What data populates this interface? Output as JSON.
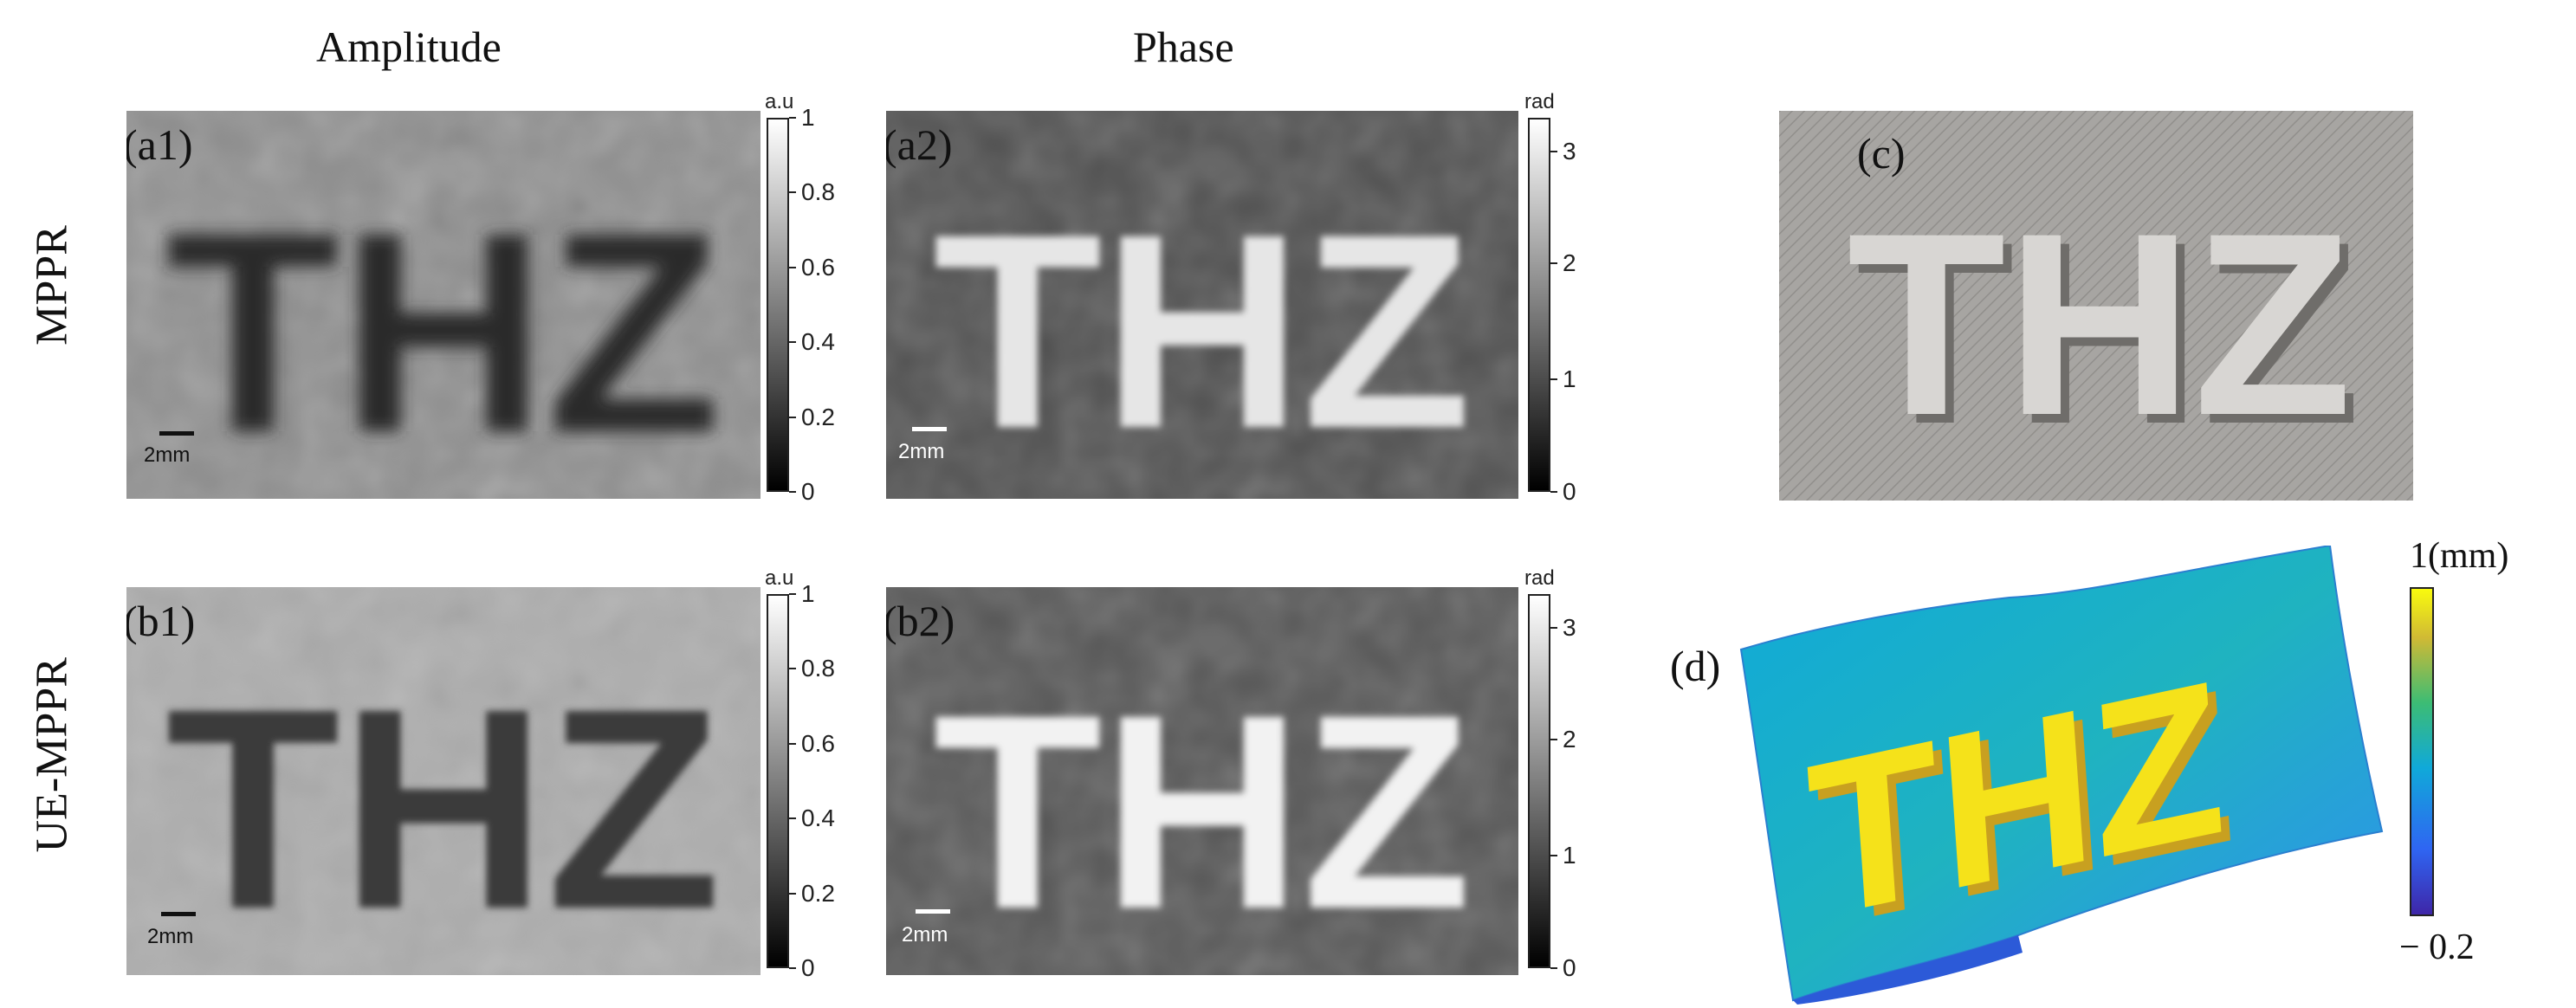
{
  "columns": {
    "amplitude": "Amplitude",
    "phase": "Phase"
  },
  "rows": {
    "mppr": "MPPR",
    "ue_mppr": "UE-MPPR"
  },
  "panels": {
    "a1": {
      "label": "(a1)",
      "scale": "2mm"
    },
    "a2": {
      "label": "(a2)",
      "scale": "2mm"
    },
    "b1": {
      "label": "(b1)",
      "scale": "2mm"
    },
    "b2": {
      "label": "(b2)",
      "scale": "2mm"
    },
    "c": {
      "label": "(c)"
    },
    "d": {
      "label": "(d)"
    }
  },
  "image_text": "THZ",
  "colorbars": {
    "amp_a": {
      "unit": "a.u",
      "ticks": [
        "1",
        "0.8",
        "0.6",
        "0.4",
        "0.2",
        "0"
      ]
    },
    "phase_a": {
      "unit": "rad",
      "ticks": [
        "3",
        "2",
        "1",
        "0"
      ]
    },
    "amp_b": {
      "unit": "a.u",
      "ticks": [
        "1",
        "0.8",
        "0.6",
        "0.4",
        "0.2",
        "0"
      ]
    },
    "phase_b": {
      "unit": "rad",
      "ticks": [
        "3",
        "2",
        "1",
        "0"
      ]
    },
    "height": {
      "max": "1(mm)",
      "min": "− 0.2"
    }
  },
  "colors": {
    "parula_top": "#f9fb0e",
    "parula_mid": "#1fb3a8",
    "parula_bottom": "#3e26a8"
  }
}
